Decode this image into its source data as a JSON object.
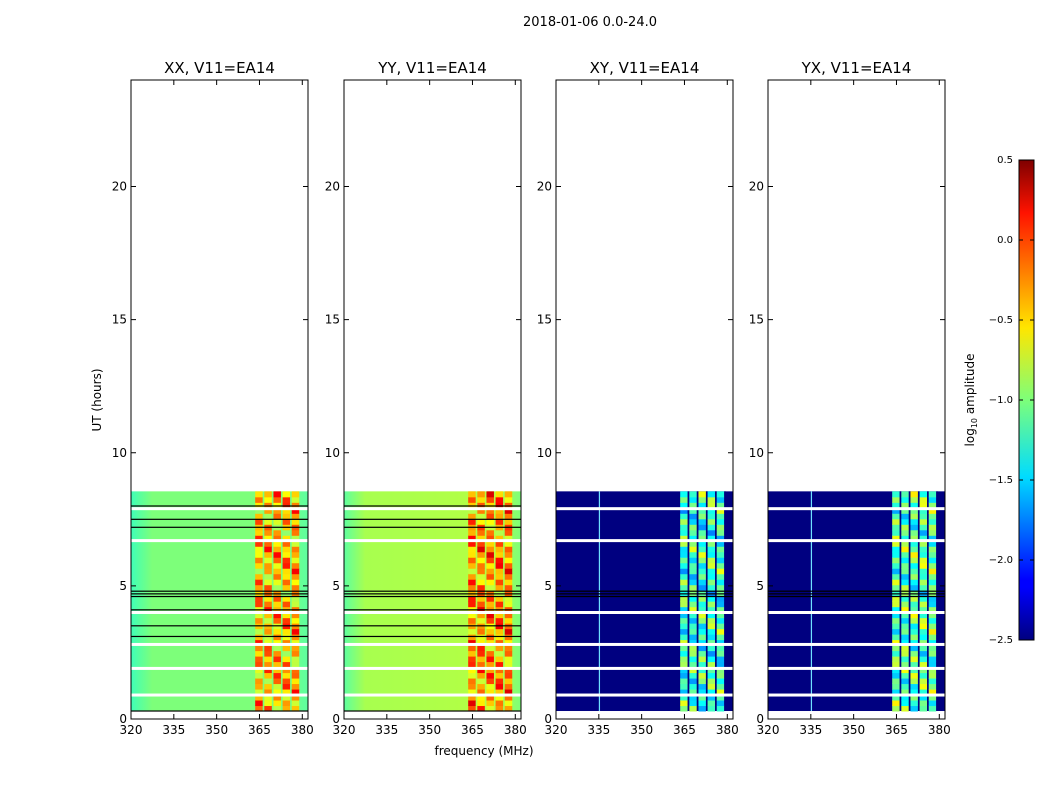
{
  "chart_data": {
    "type": "heatmap",
    "suptitle": "2018-01-06 0.0-24.0",
    "xlabel": "frequency (MHz)",
    "ylabel": "UT (hours)",
    "xlim": [
      320,
      382
    ],
    "ylim": [
      0,
      24
    ],
    "xticks": [
      320,
      335,
      350,
      365,
      380
    ],
    "yticks": [
      0,
      5,
      10,
      15,
      20
    ],
    "data_extent_hours": [
      0.3,
      8.55
    ],
    "data_extent_freq": [
      320,
      382
    ],
    "panels": [
      {
        "title": "XX, V11=EA14",
        "base_log_amp": -1.05,
        "band_log_amp": -0.4,
        "band_freq": [
          363.5,
          379.5
        ],
        "white_gaps_hours": [
          0.9,
          1.9,
          2.8,
          4.0,
          6.7,
          7.9
        ],
        "black_lines_hours": [
          0.3,
          3.1,
          3.5,
          4.1,
          4.6,
          4.7,
          4.8,
          7.2,
          7.5,
          8.0
        ]
      },
      {
        "title": "YY, V11=EA14",
        "base_log_amp": -0.9,
        "band_log_amp": -0.3,
        "band_freq": [
          363.5,
          379.5
        ],
        "white_gaps_hours": [
          0.9,
          1.9,
          2.8,
          4.0,
          6.7,
          7.9
        ],
        "black_lines_hours": [
          0.3,
          3.1,
          3.5,
          4.1,
          4.6,
          4.7,
          4.8,
          7.2,
          7.5,
          8.0
        ]
      },
      {
        "title": "XY, V11=EA14",
        "base_log_amp": -2.5,
        "band_log_amp": -1.2,
        "band_freq": [
          363.5,
          379.5
        ],
        "white_gaps_hours": [
          0.9,
          1.9,
          2.8,
          4.0,
          6.7,
          7.9
        ],
        "black_lines_hours": [
          4.6,
          4.7,
          4.8
        ]
      },
      {
        "title": "YX, V11=EA14",
        "base_log_amp": -2.5,
        "band_log_amp": -1.1,
        "band_freq": [
          363.5,
          379.5
        ],
        "white_gaps_hours": [
          0.9,
          1.9,
          2.8,
          4.0,
          6.7,
          7.9
        ],
        "black_lines_hours": [
          4.6,
          4.7,
          4.8
        ]
      }
    ],
    "colorbar": {
      "label": "log10 amplitude",
      "range": [
        -2.5,
        0.5
      ],
      "ticks": [
        0.5,
        0.0,
        -0.5,
        -1.0,
        -1.5,
        -2.0,
        -2.5
      ],
      "tick_labels": [
        "0.5",
        "0.0",
        "−0.5",
        "−1.0",
        "−1.5",
        "−2.0",
        "−2.5"
      ],
      "colormap": "jet"
    }
  }
}
